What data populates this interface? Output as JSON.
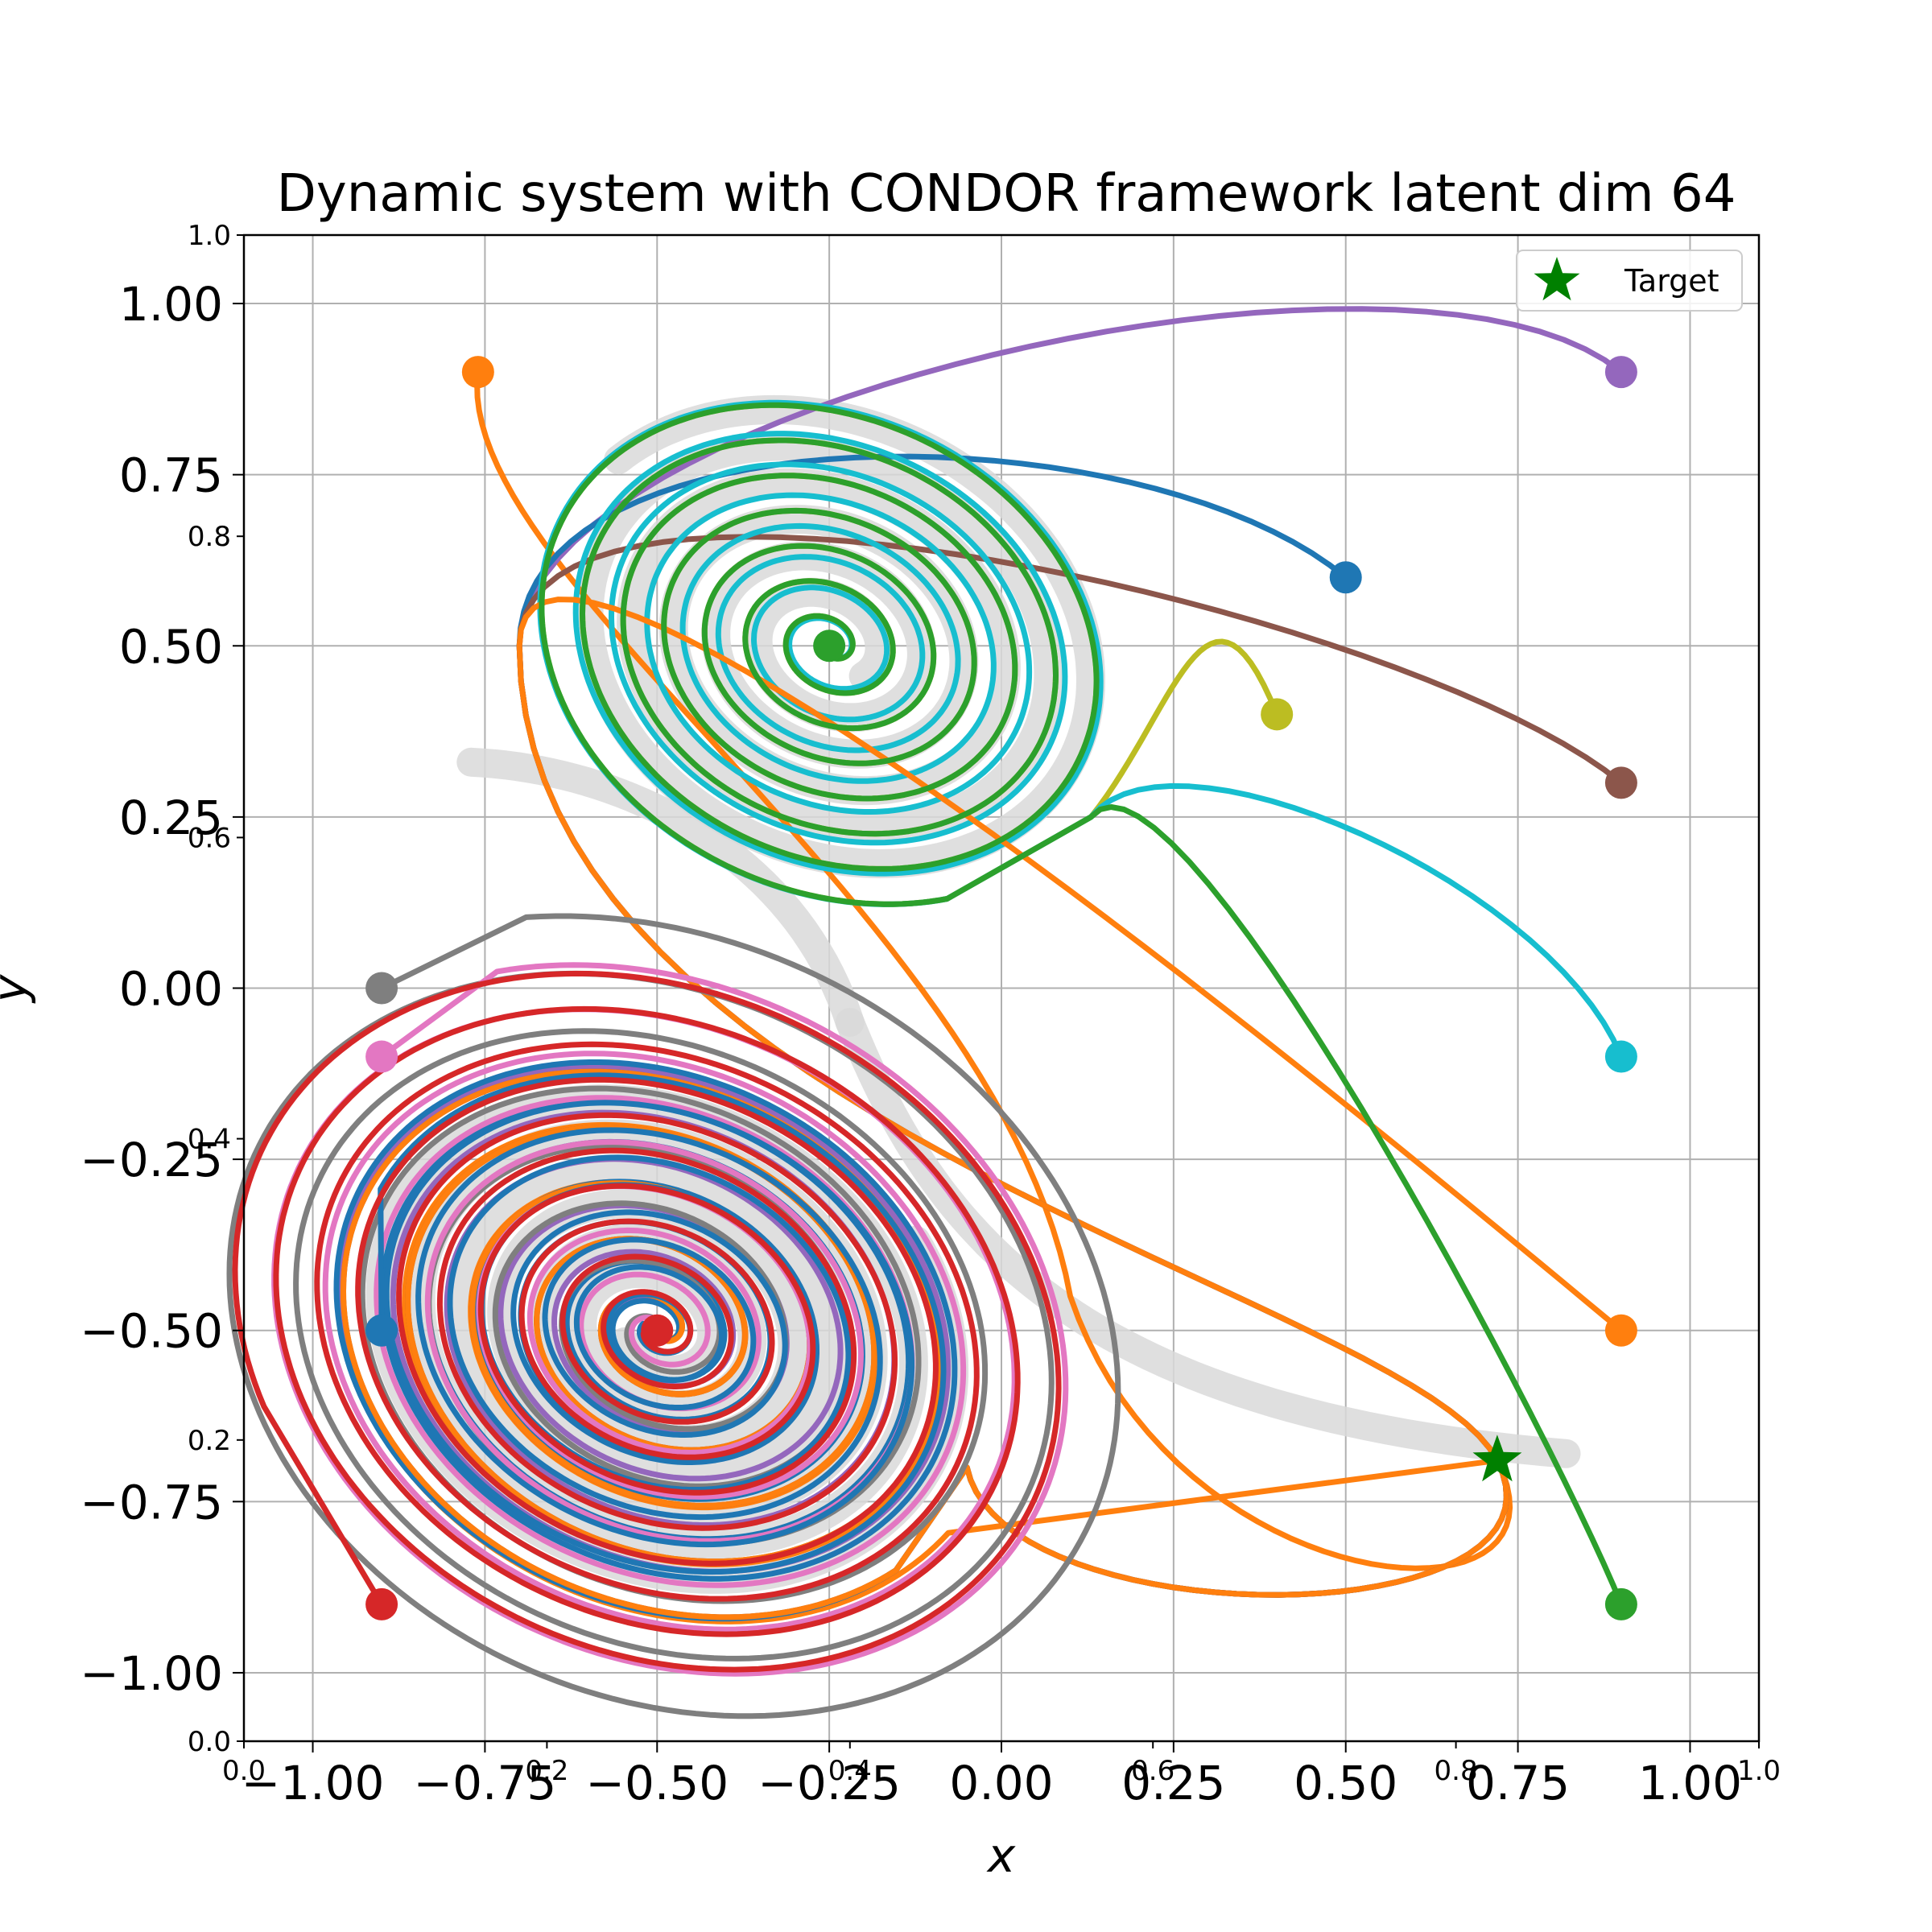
{
  "chart_data": {
    "type": "line",
    "title": "Dynamic system with CONDOR framework latent dim 64",
    "xlabel": "x",
    "ylabel": "y",
    "xlim": [
      -1.1,
      1.1
    ],
    "ylim": [
      -1.1,
      1.1
    ],
    "xticks": [
      "−1.00",
      "−0.75",
      "−0.50",
      "−0.25",
      "0.00",
      "0.25",
      "0.50",
      "0.75",
      "1.00"
    ],
    "yticks": [
      "−1.00",
      "−0.75",
      "−0.50",
      "−0.25",
      "0.00",
      "0.25",
      "0.50",
      "0.75",
      "1.00"
    ],
    "xtick_values": [
      -1.0,
      -0.75,
      -0.5,
      -0.25,
      0.0,
      0.25,
      0.5,
      0.75,
      1.0
    ],
    "ytick_values": [
      -1.0,
      -0.75,
      -0.5,
      -0.25,
      0.0,
      0.25,
      0.5,
      0.75,
      1.0
    ],
    "overlay_axis_ticks": {
      "x": [
        "0.0",
        "0.2",
        "0.4",
        "0.6",
        "0.8",
        "1.0"
      ],
      "y": [
        "0.0",
        "0.2",
        "0.4",
        "0.6",
        "0.8",
        "1.0"
      ],
      "values": [
        0.0,
        0.2,
        0.4,
        0.6,
        0.8,
        1.0
      ]
    },
    "grid": true,
    "legend": {
      "position": "top-right",
      "entries": [
        {
          "label": "Target",
          "color": "#008000",
          "marker": "star"
        }
      ]
    },
    "target": {
      "x": 0.72,
      "y": -0.69
    },
    "attractors": [
      {
        "name": "upper",
        "x": -0.25,
        "y": 0.5
      },
      {
        "name": "lower",
        "x": -0.5,
        "y": -0.5
      }
    ],
    "starts": [
      {
        "x": -0.76,
        "y": 0.9,
        "color": "#ff7f0e",
        "attractor": "lower"
      },
      {
        "x": 0.9,
        "y": 0.9,
        "color": "#9467bd",
        "attractor": "lower"
      },
      {
        "x": 0.5,
        "y": 0.6,
        "color": "#1f77b4",
        "attractor": "lower"
      },
      {
        "x": 0.9,
        "y": 0.3,
        "color": "#8c564b",
        "attractor": "lower"
      },
      {
        "x": 0.4,
        "y": 0.4,
        "color": "#bcbd22",
        "attractor": "upper"
      },
      {
        "x": 0.9,
        "y": -0.1,
        "color": "#17becf",
        "attractor": "upper"
      },
      {
        "x": 0.9,
        "y": -0.5,
        "color": "#ff7f0e",
        "attractor": "lower"
      },
      {
        "x": 0.9,
        "y": -0.9,
        "color": "#2ca02c",
        "attractor": "upper"
      },
      {
        "x": -0.9,
        "y": 0.0,
        "color": "#7f7f7f",
        "attractor": "lower"
      },
      {
        "x": -0.9,
        "y": -0.1,
        "color": "#e377c2",
        "attractor": "lower"
      },
      {
        "x": -0.9,
        "y": -0.5,
        "color": "#1f77b4",
        "attractor": "lower"
      },
      {
        "x": -0.9,
        "y": -0.9,
        "color": "#d62728",
        "attractor": "lower"
      }
    ],
    "demonstration_color": "#d9d9d9"
  }
}
